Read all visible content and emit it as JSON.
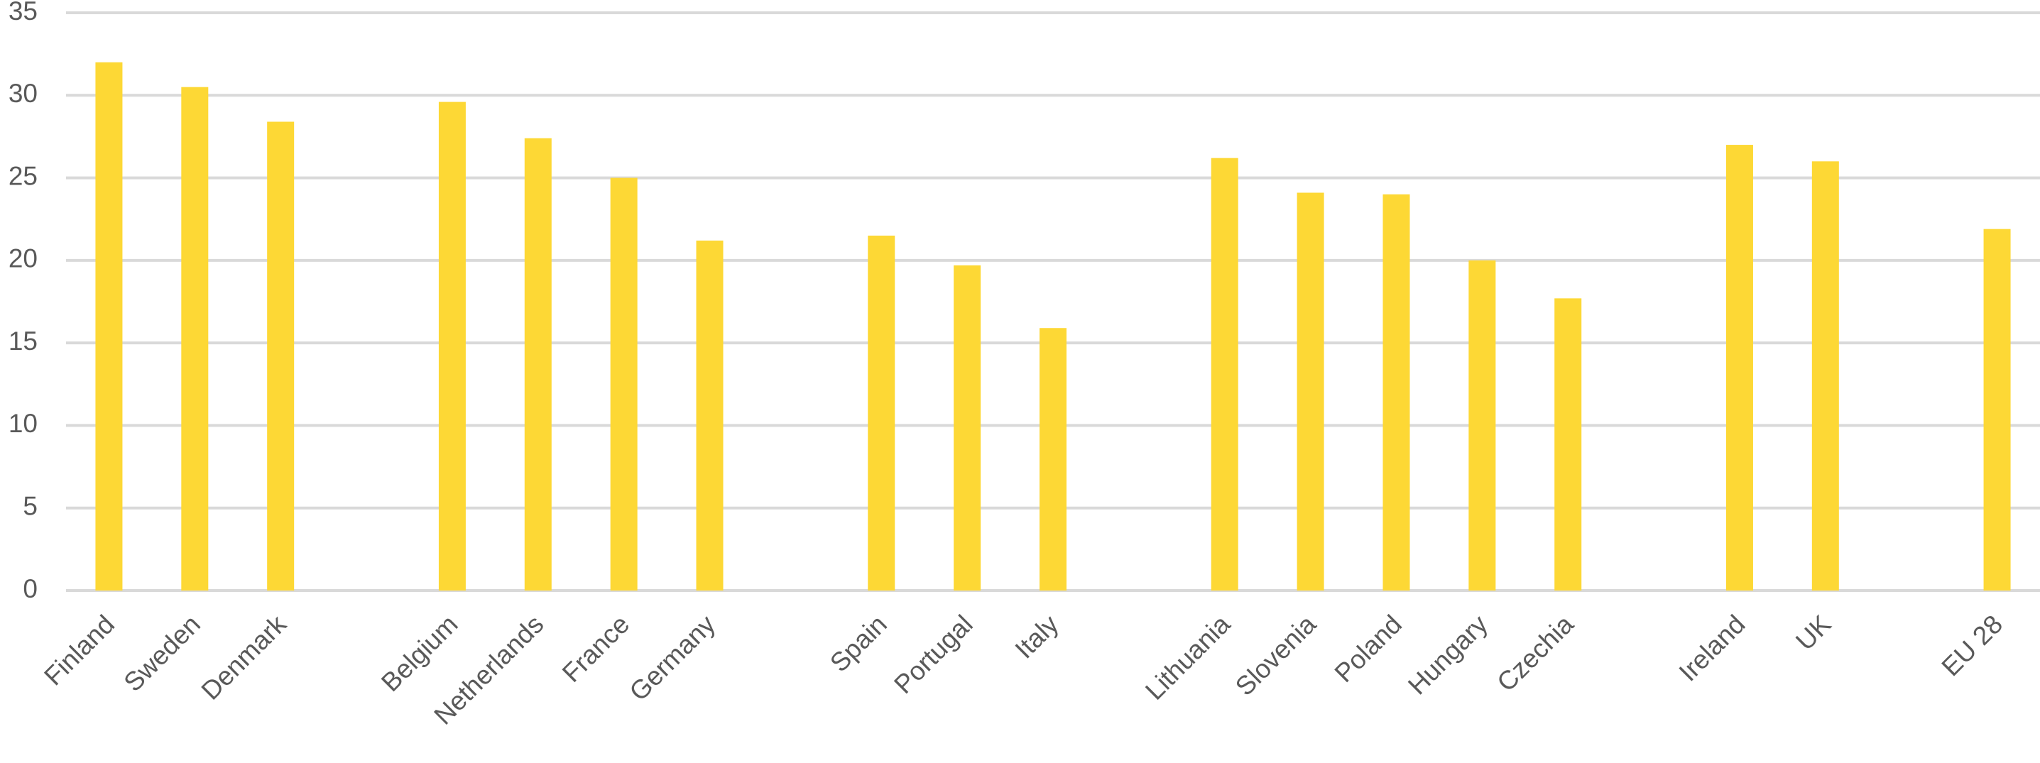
{
  "chart_data": {
    "type": "bar",
    "categories": [
      "Finland",
      "Sweden",
      "Denmark",
      null,
      "Belgium",
      "Netherlands",
      "France",
      "Germany",
      null,
      "Spain",
      "Portugal",
      "Italy",
      null,
      "Lithuania",
      "Slovenia",
      "Poland",
      "Hungary",
      "Czechia",
      null,
      "Ireland",
      "UK",
      null,
      "EU 28"
    ],
    "values": [
      32,
      30.5,
      28.4,
      null,
      29.6,
      27.4,
      25.0,
      21.2,
      null,
      21.5,
      19.7,
      15.9,
      null,
      26.2,
      24.1,
      24.0,
      20.0,
      17.7,
      null,
      27.0,
      26.0,
      null,
      21.9
    ],
    "color": "#fdd835",
    "ylim": [
      0,
      35
    ],
    "yticks": [
      0,
      5,
      10,
      15,
      20,
      25,
      30,
      35
    ],
    "grid": true
  }
}
